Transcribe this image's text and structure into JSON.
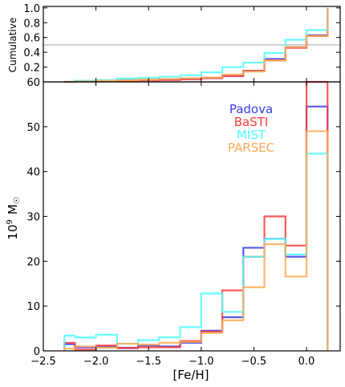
{
  "chart_data": [
    {
      "type": "line",
      "step": true,
      "ylabel": "Cumulative",
      "xlim": [
        -2.5,
        0.32
      ],
      "ylim": [
        0,
        1.02
      ],
      "yticks": [
        "0.2",
        "0.4",
        "0.6",
        "0.8",
        "1.0"
      ],
      "reference_line": {
        "y": 0.5,
        "color": "#c0c0c0"
      },
      "x_edges": [
        -2.3,
        -2.2,
        -2.0,
        -1.8,
        -1.6,
        -1.4,
        -1.2,
        -1.0,
        -0.8,
        -0.6,
        -0.4,
        -0.2,
        0.0,
        0.2
      ],
      "series": [
        {
          "name": "Padova",
          "color": "#3b3be6",
          "values": [
            0.0,
            0.01,
            0.015,
            0.02,
            0.025,
            0.03,
            0.04,
            0.05,
            0.08,
            0.15,
            0.31,
            0.47,
            0.63,
            1.0
          ]
        },
        {
          "name": "BaSTI",
          "color": "#ff3b3b",
          "values": [
            0.0,
            0.005,
            0.01,
            0.015,
            0.02,
            0.025,
            0.035,
            0.05,
            0.08,
            0.15,
            0.29,
            0.46,
            0.62,
            1.0
          ]
        },
        {
          "name": "MIST",
          "color": "#4dffff",
          "values": [
            0.0,
            0.015,
            0.025,
            0.045,
            0.055,
            0.07,
            0.09,
            0.13,
            0.2,
            0.26,
            0.39,
            0.57,
            0.7,
            1.0
          ]
        },
        {
          "name": "PARSEC",
          "color": "#ffaa55",
          "values": [
            0.0,
            0.005,
            0.015,
            0.02,
            0.03,
            0.04,
            0.05,
            0.06,
            0.1,
            0.14,
            0.29,
            0.47,
            0.62,
            1.0
          ]
        }
      ]
    },
    {
      "type": "bar",
      "step": true,
      "xlabel": "[Fe/H]",
      "ylabel": "10⁹ M☉",
      "ylabel_base": "10",
      "ylabel_exp": "9",
      "ylabel_unit": "M",
      "ylabel_sub": "☉",
      "xlim": [
        -2.5,
        0.32
      ],
      "ylim": [
        0,
        60
      ],
      "xticks": [
        "−2.5",
        "−2.0",
        "−1.5",
        "−1.0",
        "−0.5",
        "0.0"
      ],
      "yticks": [
        "0",
        "10",
        "20",
        "30",
        "40",
        "50",
        "60"
      ],
      "x_edges": [
        -2.3,
        -2.2,
        -2.0,
        -1.8,
        -1.6,
        -1.4,
        -1.2,
        -1.0,
        -0.8,
        -0.6,
        -0.4,
        -0.2,
        0.0,
        0.2
      ],
      "legend_position": "upper-right",
      "series": [
        {
          "name": "Padova",
          "color": "#3b3be6",
          "values": [
            1.5,
            0.8,
            1.0,
            0.7,
            1.2,
            1.0,
            1.8,
            4.5,
            7.5,
            23,
            25,
            21,
            54.5
          ]
        },
        {
          "name": "BaSTI",
          "color": "#ff3b3b",
          "values": [
            1.8,
            0.3,
            1.2,
            0.6,
            0.8,
            0.8,
            2.2,
            4.3,
            13.5,
            21,
            30,
            23.5,
            60
          ]
        },
        {
          "name": "MIST",
          "color": "#4dffff",
          "values": [
            3.4,
            3.0,
            3.6,
            1.6,
            2.4,
            3.0,
            5.3,
            12.8,
            8.7,
            21,
            25,
            21.5,
            44
          ]
        },
        {
          "name": "PARSEC",
          "color": "#ffaa55",
          "values": [
            0.5,
            1.0,
            0.7,
            1.6,
            1.4,
            1.8,
            2.0,
            4.0,
            6.8,
            14.2,
            23.8,
            16.6,
            49
          ]
        }
      ]
    }
  ]
}
